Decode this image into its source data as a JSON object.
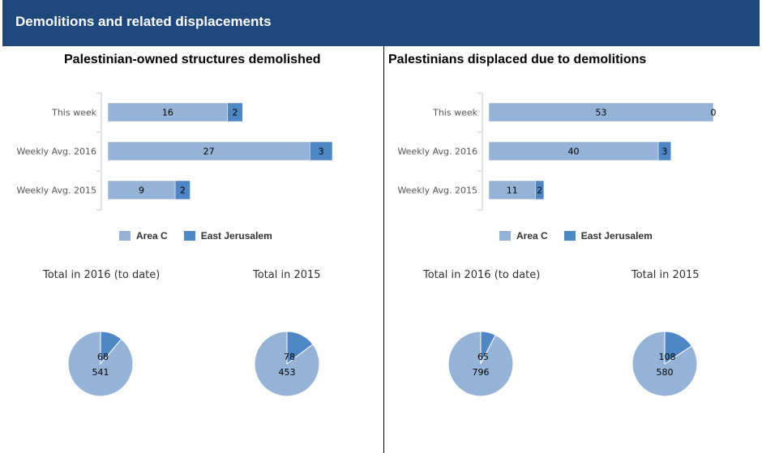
{
  "header": {
    "title": "Demolitions and related displacements"
  },
  "colors": {
    "area_c": "#94b3d7",
    "east_jerusalem": "#4f86c6",
    "header_bg": "#1f487c"
  },
  "legend": {
    "area_c": "Area C",
    "east_jerusalem": "East Jerusalem"
  },
  "panels": [
    {
      "title": "Palestinian-owned structures demolished",
      "pie_titles": [
        "Total in 2016 (to date)",
        "Total in 2015"
      ]
    },
    {
      "title": "Palestinians displaced due to demolitions",
      "pie_titles": [
        "Total in 2016 (to date)",
        "Total in 2015"
      ]
    }
  ],
  "chart_data": [
    {
      "type": "bar",
      "stacked": true,
      "orientation": "horizontal",
      "title": "Palestinian-owned structures demolished",
      "categories": [
        "This week",
        "Weekly Avg. 2016",
        "Weekly Avg. 2015"
      ],
      "series": [
        {
          "name": "Area C",
          "values": [
            16,
            27,
            9
          ]
        },
        {
          "name": "East Jerusalem",
          "values": [
            2,
            3,
            2
          ]
        }
      ],
      "xlim": [
        0,
        30
      ]
    },
    {
      "type": "pie",
      "title": "Total in 2016 (to date)",
      "labels": [
        "Area C",
        "East Jerusalem"
      ],
      "values": [
        541,
        68
      ]
    },
    {
      "type": "pie",
      "title": "Total in 2015",
      "labels": [
        "Area C",
        "East Jerusalem"
      ],
      "values": [
        453,
        78
      ]
    },
    {
      "type": "bar",
      "stacked": true,
      "orientation": "horizontal",
      "title": "Palestinians displaced due to demolitions",
      "categories": [
        "This week",
        "Weekly Avg. 2016",
        "Weekly Avg. 2015"
      ],
      "series": [
        {
          "name": "Area C",
          "values": [
            53,
            40,
            11
          ]
        },
        {
          "name": "East Jerusalem",
          "values": [
            0,
            3,
            2
          ]
        }
      ],
      "xlim": [
        0,
        53
      ]
    },
    {
      "type": "pie",
      "title": "Total in 2016 (to date)",
      "labels": [
        "Area C",
        "East Jerusalem"
      ],
      "values": [
        796,
        65
      ]
    },
    {
      "type": "pie",
      "title": "Total in 2015",
      "labels": [
        "Area C",
        "East Jerusalem"
      ],
      "values": [
        580,
        108
      ]
    }
  ]
}
